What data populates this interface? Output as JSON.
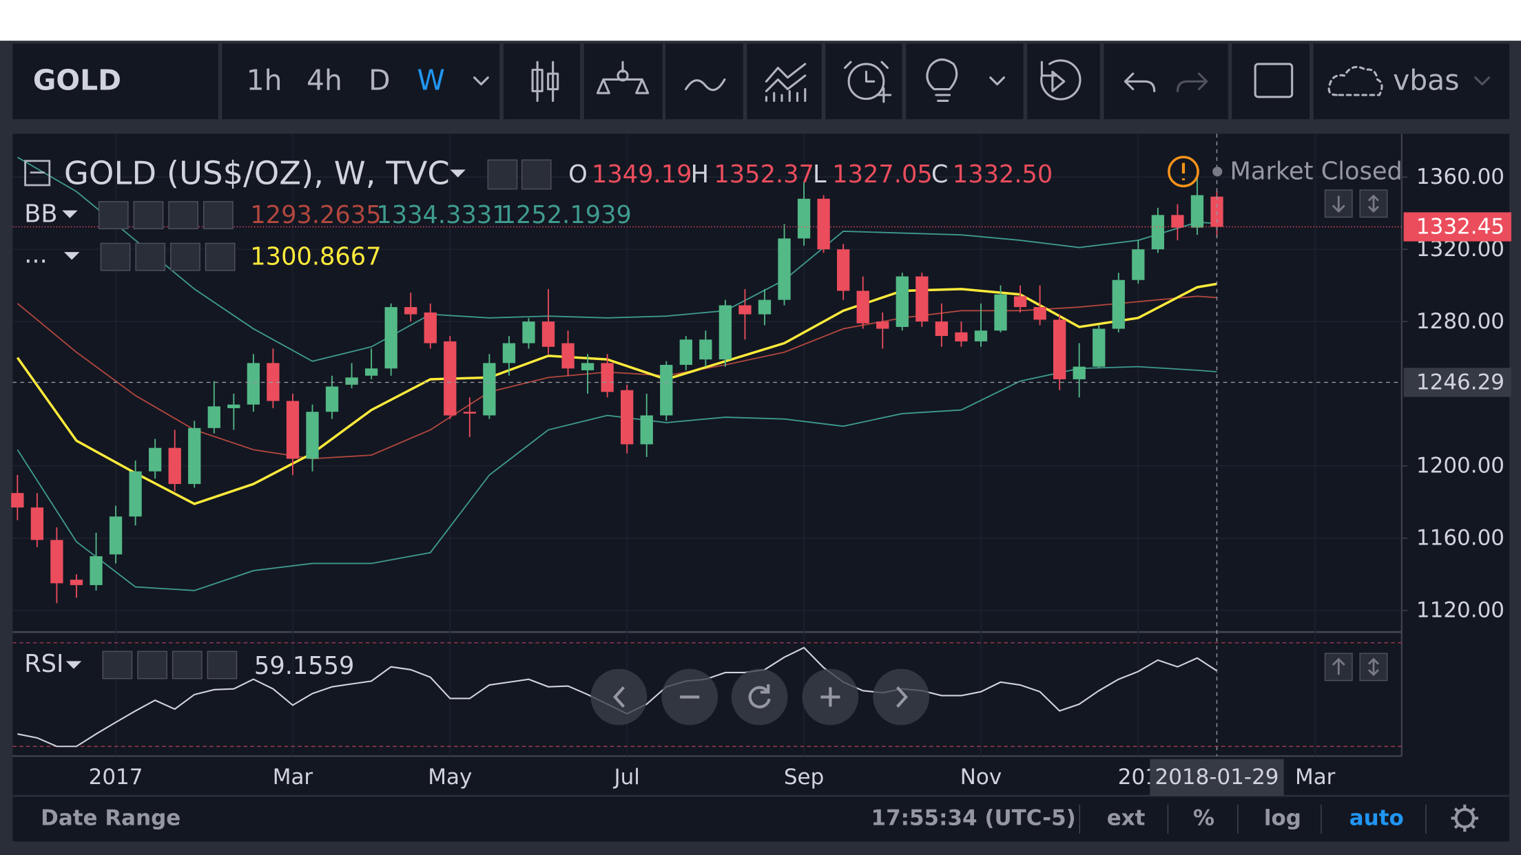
{
  "toolbar": {
    "symbol": "GOLD",
    "intervals": [
      "1h",
      "4h",
      "D",
      "W"
    ],
    "account": "vbas"
  },
  "chart_data": {
    "type": "candlestick",
    "title": "GOLD (US$/OZ), W, TVC",
    "legend": {
      "labels": [
        "O",
        "H",
        "L",
        "C"
      ],
      "values": [
        "1349.19",
        "1352.37",
        "1327.05",
        "1332.50"
      ]
    },
    "status": "Market Closed",
    "x": [
      "2016-11-28",
      "2016-12-05",
      "2016-12-12",
      "2016-12-19",
      "2016-12-26",
      "2017-01-02",
      "2017-01-09",
      "2017-01-16",
      "2017-01-23",
      "2017-01-30",
      "2017-02-06",
      "2017-02-13",
      "2017-02-20",
      "2017-02-27",
      "2017-03-06",
      "2017-03-13",
      "2017-03-20",
      "2017-03-27",
      "2017-04-03",
      "2017-04-10",
      "2017-04-17",
      "2017-04-24",
      "2017-05-01",
      "2017-05-08",
      "2017-05-15",
      "2017-05-22",
      "2017-05-29",
      "2017-06-05",
      "2017-06-12",
      "2017-06-19",
      "2017-06-26",
      "2017-07-03",
      "2017-07-10",
      "2017-07-17",
      "2017-07-24",
      "2017-07-31",
      "2017-08-07",
      "2017-08-14",
      "2017-08-21",
      "2017-08-28",
      "2017-09-04",
      "2017-09-11",
      "2017-09-18",
      "2017-09-25",
      "2017-10-02",
      "2017-10-09",
      "2017-10-16",
      "2017-10-23",
      "2017-10-30",
      "2017-11-06",
      "2017-11-13",
      "2017-11-20",
      "2017-11-27",
      "2017-12-04",
      "2017-12-11",
      "2017-12-18",
      "2017-12-25",
      "2018-01-01",
      "2018-01-08",
      "2018-01-15",
      "2018-01-22",
      "2018-01-29"
    ],
    "open": [
      1185,
      1177,
      1159,
      1137,
      1134,
      1151,
      1172,
      1197,
      1210,
      1190,
      1221,
      1232,
      1234,
      1257,
      1236,
      1204,
      1230,
      1245,
      1250,
      1254,
      1288,
      1285,
      1269,
      1230,
      1228,
      1257,
      1268,
      1280,
      1268,
      1253,
      1257,
      1242,
      1212,
      1228,
      1256,
      1259,
      1259,
      1289,
      1284,
      1292,
      1326,
      1348,
      1320,
      1297,
      1280,
      1277,
      1305,
      1280,
      1274,
      1269,
      1275,
      1294,
      1288,
      1281,
      1248,
      1255,
      1276,
      1303,
      1320,
      1339,
      1332,
      1349.19
    ],
    "high": [
      1195,
      1185,
      1166,
      1140,
      1163,
      1178,
      1203,
      1215,
      1220,
      1225,
      1247,
      1240,
      1262,
      1265,
      1240,
      1234,
      1250,
      1257,
      1265,
      1290,
      1296,
      1290,
      1272,
      1238,
      1262,
      1272,
      1282,
      1298,
      1275,
      1262,
      1262,
      1245,
      1240,
      1258,
      1272,
      1275,
      1292,
      1298,
      1298,
      1334,
      1357,
      1350,
      1323,
      1305,
      1285,
      1307,
      1307,
      1290,
      1280,
      1290,
      1300,
      1300,
      1300,
      1284,
      1268,
      1278,
      1307,
      1325,
      1343,
      1345,
      1362,
      1352.37
    ],
    "low": [
      1170,
      1155,
      1124,
      1127,
      1131,
      1146,
      1167,
      1193,
      1186,
      1188,
      1218,
      1220,
      1230,
      1232,
      1195,
      1197,
      1226,
      1243,
      1248,
      1250,
      1280,
      1265,
      1226,
      1216,
      1226,
      1250,
      1265,
      1262,
      1250,
      1240,
      1238,
      1207,
      1205,
      1225,
      1253,
      1255,
      1255,
      1270,
      1278,
      1289,
      1322,
      1318,
      1292,
      1276,
      1265,
      1275,
      1277,
      1266,
      1266,
      1266,
      1274,
      1285,
      1278,
      1242,
      1238,
      1254,
      1274,
      1301,
      1318,
      1325,
      1328,
      1327.05
    ],
    "close": [
      1177,
      1159,
      1135,
      1134,
      1150,
      1172,
      1197,
      1210,
      1190,
      1221,
      1233,
      1234,
      1257,
      1236,
      1204,
      1230,
      1244,
      1249,
      1254,
      1288,
      1284,
      1268,
      1228,
      1229,
      1257,
      1268,
      1280,
      1266,
      1254,
      1257,
      1241,
      1212,
      1228,
      1256,
      1270,
      1270,
      1289,
      1284,
      1292,
      1326,
      1348,
      1320,
      1297,
      1279,
      1276,
      1305,
      1280,
      1272,
      1269,
      1275,
      1295,
      1288,
      1281,
      1248,
      1255,
      1276,
      1303,
      1320,
      1339,
      1332,
      1350,
      1332.5
    ],
    "up_color": "#53b987",
    "down_color": "#eb4d5c",
    "ylim": [
      1108,
      1384
    ],
    "yticks": [
      {
        "value": 1120,
        "label": "1120.00"
      },
      {
        "value": 1160,
        "label": "1160.00"
      },
      {
        "value": 1200,
        "label": "1200.00"
      },
      {
        "value": 1280,
        "label": "1280.00"
      },
      {
        "value": 1320,
        "label": "1320.00"
      },
      {
        "value": 1360,
        "label": "1360.00"
      }
    ],
    "xticks": [
      {
        "value": "2017-01-02",
        "label": "2017"
      },
      {
        "value": "2017-03-06",
        "label": "Mar"
      },
      {
        "value": "2017-05-01",
        "label": "May"
      },
      {
        "value": "2017-07-03",
        "label": "Jul"
      },
      {
        "value": "2017-09-04",
        "label": "Sep"
      },
      {
        "value": "2017-11-06",
        "label": "Nov"
      },
      {
        "value": "2018-01-01",
        "label": "201"
      },
      {
        "value": "2018-03-05",
        "label": "Mar"
      }
    ],
    "grid": true,
    "last_price": 1332.45,
    "crosshair": {
      "x": "2018-01-29",
      "y": 1246.29
    },
    "overlays": [
      {
        "name": "BB",
        "x": [
          "2016-11-28",
          "2016-12-19",
          "2017-01-09",
          "2017-01-30",
          "2017-02-20",
          "2017-03-13",
          "2017-04-03",
          "2017-04-24",
          "2017-05-15",
          "2017-06-05",
          "2017-06-26",
          "2017-07-17",
          "2017-08-07",
          "2017-08-28",
          "2017-09-18",
          "2017-10-09",
          "2017-10-30",
          "2017-11-20",
          "2017-12-11",
          "2018-01-01",
          "2018-01-22",
          "2018-01-29"
        ],
        "series": [
          {
            "color": "#b2473e",
            "values": [
              1290,
              1263,
              1239,
              1220,
              1209,
              1204,
              1206,
              1220,
              1241,
              1249,
              1252,
              1250,
              1256,
              1263,
              1276,
              1282,
              1286,
              1286,
              1288,
              1291,
              1294,
              1293.2635
            ]
          },
          {
            "color": "#3f9b8f",
            "values": [
              1371,
              1352,
              1325,
              1298,
              1276,
              1258,
              1266,
              1284,
              1282,
              1283,
              1282,
              1283,
              1286,
              1303,
              1330,
              1329,
              1328,
              1325,
              1321,
              1325,
              1335,
              1334.3331
            ]
          },
          {
            "color": "#3f9b8f",
            "values": [
              1209,
              1158,
              1133,
              1131,
              1142,
              1146,
              1146,
              1152,
              1195,
              1220,
              1228,
              1224,
              1227,
              1226,
              1222,
              1229,
              1231,
              1247,
              1254,
              1255,
              1253,
              1252.1939
            ]
          }
        ]
      },
      {
        "name": "...",
        "x": [
          "2016-11-28",
          "2016-12-19",
          "2017-01-09",
          "2017-01-30",
          "2017-02-20",
          "2017-03-13",
          "2017-04-03",
          "2017-04-24",
          "2017-05-15",
          "2017-06-05",
          "2017-06-26",
          "2017-07-17",
          "2017-08-07",
          "2017-08-28",
          "2017-09-18",
          "2017-10-09",
          "2017-10-30",
          "2017-11-20",
          "2017-12-11",
          "2018-01-01",
          "2018-01-22",
          "2018-01-29"
        ],
        "series": [
          {
            "color": "#ffeb3b",
            "values": [
              1260,
              1214,
              1196,
              1179,
              1190,
              1207,
              1231,
              1248,
              1249,
              1261,
              1259,
              1248,
              1258,
              1268,
              1286,
              1297,
              1298,
              1295,
              1277,
              1282,
              1299,
              1300.8667
            ]
          }
        ]
      }
    ],
    "rsi": {
      "name": "RSI",
      "color": "#d1d4dc",
      "ylim": [
        27,
        73
      ],
      "levels": [
        70,
        30
      ],
      "values": [
        34.8,
        33.3,
        30,
        30,
        34.8,
        39.3,
        43.7,
        47.8,
        44.4,
        50,
        51.9,
        52.2,
        55.9,
        52.2,
        45.9,
        50.4,
        53,
        54.1,
        55.2,
        60.7,
        59.6,
        56.7,
        48.5,
        48.5,
        53.7,
        54.8,
        55.9,
        53,
        53.3,
        50,
        46.3,
        42.6,
        46.3,
        53,
        55.2,
        55.9,
        58.5,
        58.5,
        59.6,
        64.4,
        68.1,
        60.4,
        54.8,
        51.5,
        50.7,
        52.2,
        51.5,
        49.6,
        49.6,
        51.1,
        54.8,
        53.7,
        51.1,
        43.7,
        46.3,
        51.5,
        55.9,
        58.9,
        63.3,
        60.7,
        64.1,
        59.1559
      ]
    }
  },
  "footer": {
    "range": "Date Range",
    "time": "17:55:34 (UTC-5)",
    "options": [
      "ext",
      "%",
      "log",
      "auto"
    ]
  }
}
